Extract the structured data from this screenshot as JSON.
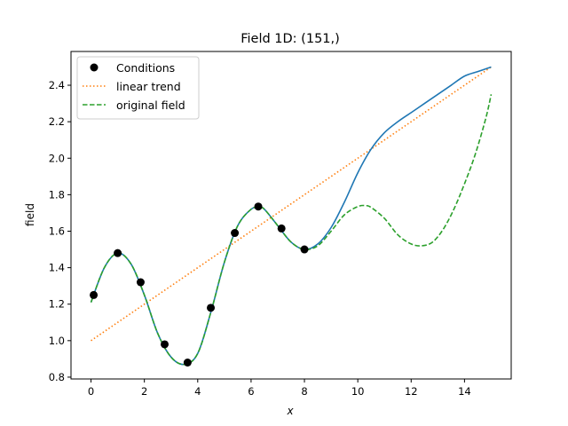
{
  "chart_data": {
    "type": "line",
    "title": "Field 1D: (151,)",
    "xlabel": "x",
    "ylabel": "field",
    "xlim": [
      -0.75,
      15.75
    ],
    "ylim": [
      0.79,
      2.585
    ],
    "xticks": [
      0,
      2,
      4,
      6,
      8,
      10,
      12,
      14
    ],
    "yticks": [
      0.8,
      1.0,
      1.2,
      1.4,
      1.6,
      1.8,
      2.0,
      2.2,
      2.4
    ],
    "xtick_labels": [
      "0",
      "2",
      "4",
      "6",
      "8",
      "10",
      "12",
      "14"
    ],
    "ytick_labels": [
      "0.8",
      "1.0",
      "1.2",
      "1.4",
      "1.6",
      "1.8",
      "2.0",
      "2.2",
      "2.4"
    ],
    "grid": false,
    "legend_position": "upper-left",
    "legend": [
      "Conditions",
      "linear trend",
      "original field"
    ],
    "series": [
      {
        "name": "Conditions",
        "style": "scatter",
        "color": "#000000",
        "x": [
          0.1,
          1.0,
          1.86,
          2.76,
          3.62,
          4.49,
          5.39,
          6.27,
          7.14,
          8.0
        ],
        "y": [
          1.25,
          1.48,
          1.32,
          0.98,
          0.88,
          1.18,
          1.59,
          1.735,
          1.615,
          1.5
        ]
      },
      {
        "name": "linear trend",
        "style": "dotted",
        "color": "#ff7f0e",
        "x": [
          0,
          15
        ],
        "y": [
          1.0,
          2.5
        ]
      },
      {
        "name": "original field",
        "style": "dashed",
        "color": "#2ca02c",
        "x": [
          0,
          0.5,
          1.0,
          1.5,
          2.0,
          2.5,
          3.0,
          3.5,
          4.0,
          4.5,
          5.0,
          5.5,
          6.0,
          6.3,
          6.5,
          7.0,
          7.5,
          8.0,
          8.5,
          9.0,
          9.5,
          10.0,
          10.3,
          10.5,
          11.0,
          11.5,
          12.0,
          12.4,
          12.8,
          13.2,
          13.6,
          14.0,
          14.4,
          14.8,
          15.0
        ],
        "y": [
          1.21,
          1.4,
          1.48,
          1.42,
          1.25,
          1.04,
          0.91,
          0.87,
          0.93,
          1.16,
          1.43,
          1.63,
          1.72,
          1.73,
          1.72,
          1.63,
          1.54,
          1.5,
          1.52,
          1.6,
          1.69,
          1.735,
          1.74,
          1.73,
          1.67,
          1.58,
          1.53,
          1.52,
          1.54,
          1.61,
          1.72,
          1.86,
          2.02,
          2.22,
          2.35
        ]
      },
      {
        "name": "",
        "style": "solid",
        "color": "#1f77b4",
        "x": [
          0,
          0.5,
          1.0,
          1.5,
          2.0,
          2.5,
          3.0,
          3.5,
          4.0,
          4.5,
          5.0,
          5.5,
          6.0,
          6.3,
          6.5,
          7.0,
          7.5,
          8.0,
          8.5,
          9.0,
          9.5,
          10.0,
          10.5,
          11.0,
          11.5,
          12.0,
          12.5,
          13.0,
          13.5,
          14.0,
          14.5,
          15.0
        ],
        "y": [
          1.21,
          1.4,
          1.48,
          1.42,
          1.25,
          1.04,
          0.91,
          0.87,
          0.93,
          1.16,
          1.43,
          1.63,
          1.72,
          1.73,
          1.72,
          1.63,
          1.54,
          1.5,
          1.53,
          1.62,
          1.76,
          1.92,
          2.05,
          2.14,
          2.2,
          2.25,
          2.3,
          2.35,
          2.4,
          2.45,
          2.475,
          2.5
        ]
      }
    ]
  }
}
